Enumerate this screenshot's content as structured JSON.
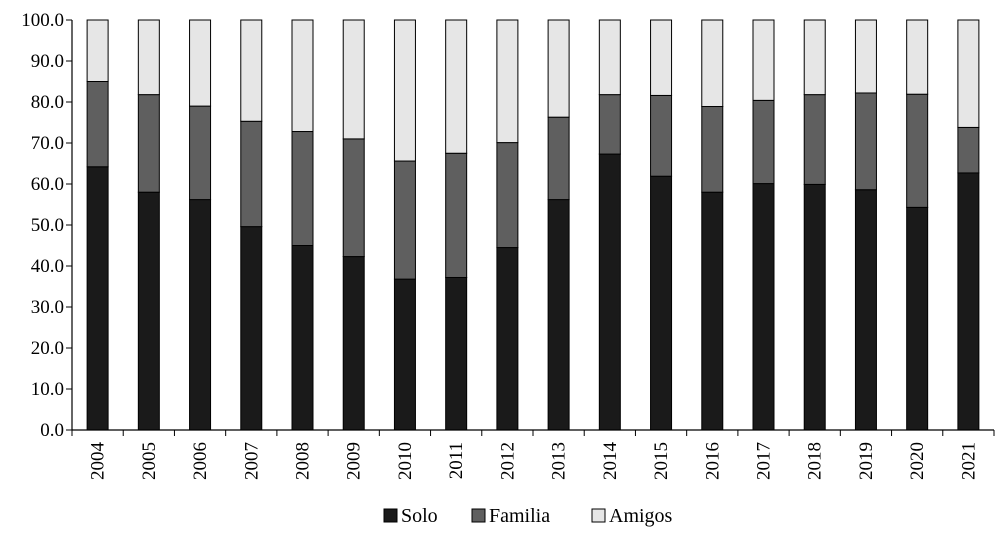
{
  "chart_data": {
    "type": "bar",
    "stacked": true,
    "title": "",
    "xlabel": "",
    "ylabel": "",
    "ylim": [
      0,
      100
    ],
    "yticks": [
      "0.0",
      "10.0",
      "20.0",
      "30.0",
      "40.0",
      "50.0",
      "60.0",
      "70.0",
      "80.0",
      "90.0",
      "100.0"
    ],
    "categories": [
      "2004",
      "2005",
      "2006",
      "2007",
      "2008",
      "2009",
      "2010",
      "2011",
      "2012",
      "2013",
      "2014",
      "2015",
      "2016",
      "2017",
      "2018",
      "2019",
      "2020",
      "2021"
    ],
    "series": [
      {
        "name": "Solo",
        "color": "#1a1a1a",
        "values": [
          64.2,
          58.0,
          56.2,
          49.6,
          45.0,
          42.3,
          36.8,
          37.2,
          44.5,
          56.2,
          67.3,
          61.9,
          58.0,
          60.1,
          59.9,
          58.6,
          54.3,
          62.7
        ]
      },
      {
        "name": "Familia",
        "color": "#5f5f5f",
        "values": [
          20.8,
          23.8,
          22.8,
          25.7,
          27.8,
          28.7,
          28.8,
          30.3,
          25.6,
          20.1,
          14.5,
          19.7,
          20.9,
          20.3,
          21.9,
          23.6,
          27.6,
          11.1
        ]
      },
      {
        "name": "Amigos",
        "color": "#e6e6e6",
        "values": [
          15.0,
          18.2,
          21.0,
          24.7,
          27.2,
          29.0,
          34.4,
          32.5,
          29.9,
          23.7,
          18.2,
          18.4,
          21.1,
          19.6,
          18.2,
          17.8,
          18.1,
          26.2
        ]
      }
    ],
    "grid": false,
    "legend": {
      "position": "bottom"
    }
  }
}
